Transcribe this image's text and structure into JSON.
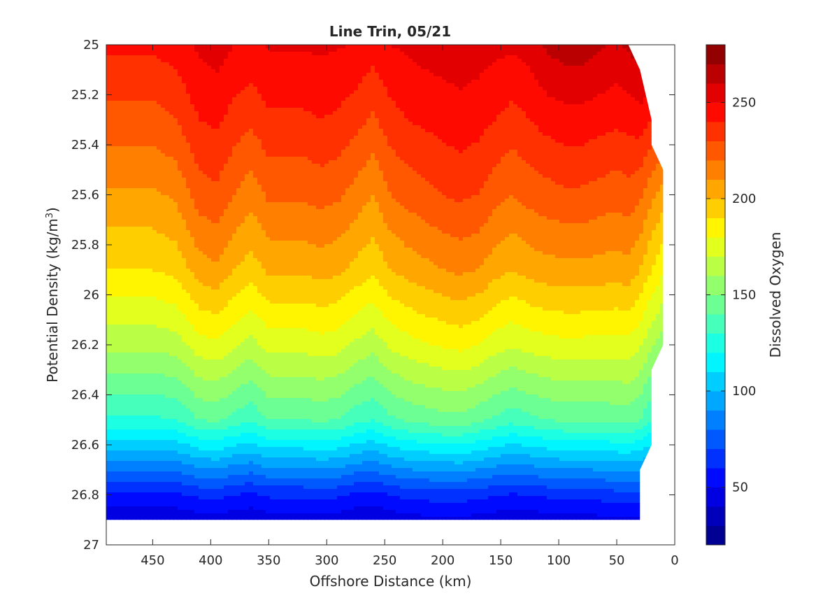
{
  "chart_data": {
    "type": "contour",
    "title": "Line Trin, 05/21",
    "xlabel": "Offshore Distance (km)",
    "ylabel": "Potential Density (kg/m",
    "ylabel_sup": "3",
    "ylabel_close": ")",
    "colorbar_label": "Dissolved Oxygen",
    "xlim": [
      490,
      0
    ],
    "ylim": [
      25,
      27
    ],
    "x_reversed": true,
    "y_reversed": true,
    "xticks": [
      450,
      400,
      350,
      300,
      250,
      200,
      150,
      100,
      50,
      0
    ],
    "yticks": [
      25,
      25.2,
      25.4,
      25.6,
      25.8,
      26,
      26.2,
      26.4,
      26.6,
      26.8,
      27
    ],
    "colorbar_range": [
      20,
      280
    ],
    "colorbar_ticks": [
      50,
      100,
      150,
      200,
      250
    ],
    "contour_step": 10,
    "colormap": "jet",
    "grid": false,
    "data_extent_x": [
      490,
      10
    ],
    "data_extent_y": [
      25,
      26.9
    ],
    "column_x": [
      490,
      470,
      450,
      430,
      410,
      395,
      380,
      365,
      350,
      335,
      320,
      305,
      290,
      275,
      260,
      245,
      230,
      215,
      200,
      185,
      170,
      155,
      140,
      125,
      110,
      95,
      80,
      65,
      50,
      40,
      30,
      20,
      10
    ],
    "profile_depth_levels": [
      25.0,
      25.3,
      25.6,
      25.9,
      26.2,
      26.5,
      26.8,
      26.9
    ],
    "profile_values_by_column": [
      [
        242,
        226,
        208,
        190,
        163,
        128,
        58,
        42
      ],
      [
        242,
        226,
        208,
        190,
        163,
        128,
        58,
        42
      ],
      [
        242,
        226,
        208,
        190,
        163,
        128,
        58,
        42
      ],
      [
        245,
        230,
        212,
        193,
        165,
        130,
        58,
        42
      ],
      [
        252,
        240,
        225,
        205,
        176,
        140,
        62,
        45
      ],
      [
        255,
        242,
        228,
        208,
        178,
        142,
        63,
        46
      ],
      [
        250,
        236,
        220,
        200,
        172,
        136,
        60,
        44
      ],
      [
        248,
        232,
        214,
        195,
        166,
        132,
        58,
        42
      ],
      [
        251,
        238,
        222,
        202,
        174,
        140,
        62,
        45
      ],
      [
        251,
        238,
        222,
        202,
        174,
        140,
        62,
        45
      ],
      [
        251,
        238,
        222,
        202,
        174,
        140,
        62,
        45
      ],
      [
        252,
        240,
        224,
        204,
        176,
        142,
        63,
        46
      ],
      [
        251,
        238,
        222,
        202,
        174,
        140,
        62,
        45
      ],
      [
        249,
        234,
        216,
        197,
        168,
        134,
        58,
        42
      ],
      [
        245,
        228,
        210,
        192,
        164,
        130,
        57,
        41
      ],
      [
        250,
        236,
        220,
        200,
        172,
        138,
        60,
        44
      ],
      [
        252,
        240,
        224,
        204,
        176,
        142,
        63,
        46
      ],
      [
        254,
        242,
        227,
        207,
        179,
        144,
        64,
        47
      ],
      [
        255,
        244,
        230,
        210,
        181,
        146,
        65,
        48
      ],
      [
        256,
        246,
        232,
        212,
        183,
        147,
        65,
        48
      ],
      [
        255,
        244,
        230,
        210,
        180,
        143,
        63,
        46
      ],
      [
        253,
        240,
        224,
        204,
        175,
        138,
        61,
        45
      ],
      [
        252,
        236,
        220,
        200,
        171,
        134,
        59,
        43
      ],
      [
        254,
        240,
        224,
        204,
        174,
        137,
        60,
        44
      ],
      [
        262,
        244,
        226,
        206,
        176,
        140,
        62,
        45
      ],
      [
        265,
        246,
        228,
        207,
        177,
        142,
        63,
        46
      ],
      [
        265,
        246,
        228,
        207,
        177,
        142,
        63,
        46
      ],
      [
        262,
        244,
        226,
        206,
        176,
        142,
        64,
        47
      ],
      [
        258,
        242,
        224,
        205,
        176,
        143,
        66,
        48
      ],
      [
        262,
        244,
        226,
        206,
        177,
        144,
        67,
        48
      ],
      [
        265,
        246,
        222,
        200,
        172,
        140,
        66,
        48
      ],
      [
        270,
        240,
        212,
        190,
        162,
        130,
        68,
        50
      ],
      [
        272,
        236,
        205,
        182,
        155,
        125,
        70,
        52
      ]
    ]
  }
}
